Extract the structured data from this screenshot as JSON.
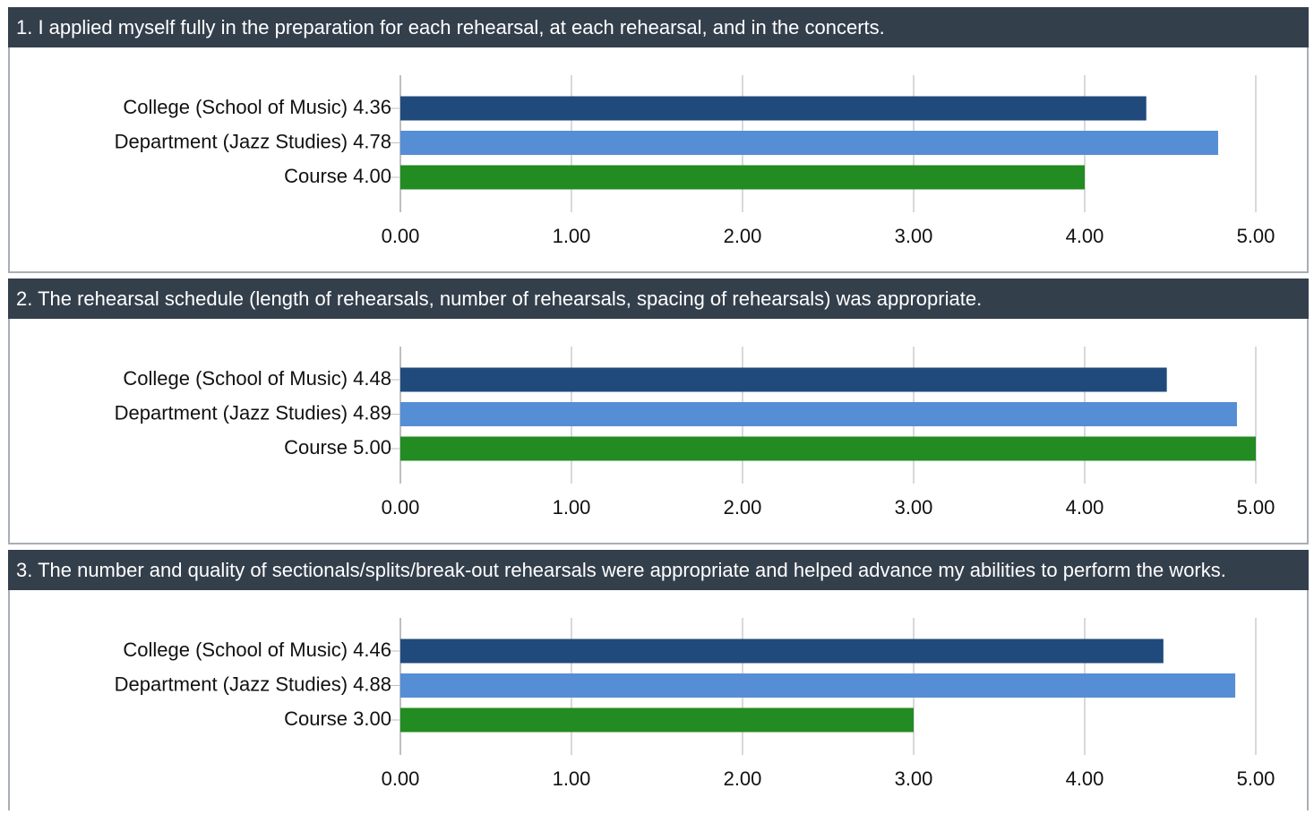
{
  "chart_data": [
    {
      "type": "barh",
      "title": "1. I applied myself fully in the preparation for each rehearsal, at each rehearsal, and in the concerts.",
      "categories": [
        "College (School of Music)",
        "Department (Jazz Studies)",
        "Course"
      ],
      "values": [
        4.36,
        4.78,
        4.0
      ],
      "value_labels": [
        "4.36",
        "4.78",
        "4.00"
      ],
      "colors": [
        "#204a7c",
        "#558ed5",
        "#228b22"
      ],
      "xlim": [
        0,
        5
      ],
      "xticks": [
        {
          "value": 0,
          "label": "0.00"
        },
        {
          "value": 1,
          "label": "1.00"
        },
        {
          "value": 2,
          "label": "2.00"
        },
        {
          "value": 3,
          "label": "3.00"
        },
        {
          "value": 4,
          "label": "4.00"
        },
        {
          "value": 5,
          "label": "5.00"
        }
      ],
      "grid": true
    },
    {
      "type": "barh",
      "title": "2. The rehearsal schedule (length of rehearsals, number of rehearsals, spacing of rehearsals) was appropriate.",
      "categories": [
        "College (School of Music)",
        "Department (Jazz Studies)",
        "Course"
      ],
      "values": [
        4.48,
        4.89,
        5.0
      ],
      "value_labels": [
        "4.48",
        "4.89",
        "5.00"
      ],
      "colors": [
        "#204a7c",
        "#558ed5",
        "#228b22"
      ],
      "xlim": [
        0,
        5
      ],
      "xticks": [
        {
          "value": 0,
          "label": "0.00"
        },
        {
          "value": 1,
          "label": "1.00"
        },
        {
          "value": 2,
          "label": "2.00"
        },
        {
          "value": 3,
          "label": "3.00"
        },
        {
          "value": 4,
          "label": "4.00"
        },
        {
          "value": 5,
          "label": "5.00"
        }
      ],
      "grid": true
    },
    {
      "type": "barh",
      "title": "3. The number and quality of sectionals/splits/break-out rehearsals were appropriate and helped advance my abilities to perform the works.",
      "categories": [
        "College (School of Music)",
        "Department (Jazz Studies)",
        "Course"
      ],
      "values": [
        4.46,
        4.88,
        3.0
      ],
      "value_labels": [
        "4.46",
        "4.88",
        "3.00"
      ],
      "colors": [
        "#204a7c",
        "#558ed5",
        "#228b22"
      ],
      "xlim": [
        0,
        5
      ],
      "xticks": [
        {
          "value": 0,
          "label": "0.00"
        },
        {
          "value": 1,
          "label": "1.00"
        },
        {
          "value": 2,
          "label": "2.00"
        },
        {
          "value": 3,
          "label": "3.00"
        },
        {
          "value": 4,
          "label": "4.00"
        },
        {
          "value": 5,
          "label": "5.00"
        }
      ],
      "grid": true
    }
  ]
}
